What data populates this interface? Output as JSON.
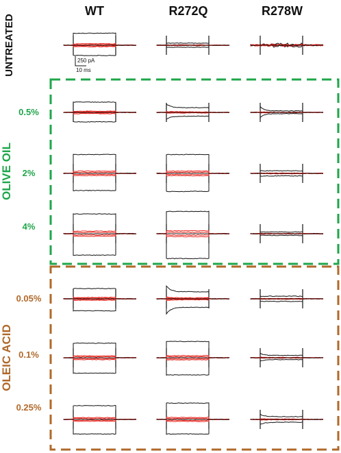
{
  "columns": [
    "WT",
    "R272Q",
    "R278W"
  ],
  "untreated_label": "UNTREATED",
  "groups": [
    {
      "name": "OLIVE OIL",
      "color": "#1fa64a",
      "rows": [
        "0.5%",
        "2%",
        "4%"
      ]
    },
    {
      "name": "OLEIC  ACID",
      "color": "#b0692a",
      "rows": [
        "0.05%",
        "0.1%",
        "0.25%"
      ]
    }
  ],
  "scale_bar": {
    "current": "250 pA",
    "time": "10 ms"
  },
  "trace_colors": {
    "family": "#111111",
    "highlight": "#e8231c"
  },
  "traces": {
    "untreated": [
      {
        "levels": [
          -0.6,
          0.7
        ],
        "kind": "step"
      },
      {
        "levels": [
          -0.12,
          0.12
        ],
        "kind": "step"
      },
      {
        "levels": [
          -0.05,
          0.05
        ],
        "kind": "noisy"
      }
    ],
    "olive_oil": [
      [
        {
          "levels": [
            -0.55,
            0.6
          ],
          "kind": "step"
        },
        {
          "levels": [
            -0.4,
            0.5
          ],
          "kind": "decay"
        },
        {
          "levels": [
            -0.3,
            0.35
          ],
          "kind": "decay_strong"
        }
      ],
      [
        {
          "levels": [
            -1.0,
            1.1
          ],
          "kind": "step"
        },
        {
          "levels": [
            -1.05,
            1.1
          ],
          "kind": "step"
        },
        {
          "levels": [
            -0.15,
            0.15
          ],
          "kind": "step"
        }
      ],
      [
        {
          "levels": [
            -1.25,
            1.15
          ],
          "kind": "step"
        },
        {
          "levels": [
            -1.45,
            1.3
          ],
          "kind": "step"
        },
        {
          "levels": [
            -0.1,
            0.1
          ],
          "kind": "step"
        }
      ]
    ],
    "oleic_acid": [
      [
        {
          "levels": [
            -0.7,
            0.6
          ],
          "kind": "step"
        },
        {
          "levels": [
            -0.9,
            0.75
          ],
          "kind": "decay"
        },
        {
          "levels": [
            -0.15,
            0.15
          ],
          "kind": "step"
        }
      ],
      [
        {
          "levels": [
            -0.9,
            0.85
          ],
          "kind": "step"
        },
        {
          "levels": [
            -1.0,
            0.95
          ],
          "kind": "step"
        },
        {
          "levels": [
            -0.2,
            0.25
          ],
          "kind": "decay"
        }
      ],
      [
        {
          "levels": [
            -0.85,
            0.8
          ],
          "kind": "step"
        },
        {
          "levels": [
            -0.85,
            0.95
          ],
          "kind": "step"
        },
        {
          "levels": [
            -0.3,
            0.3
          ],
          "kind": "decay"
        }
      ]
    ]
  }
}
